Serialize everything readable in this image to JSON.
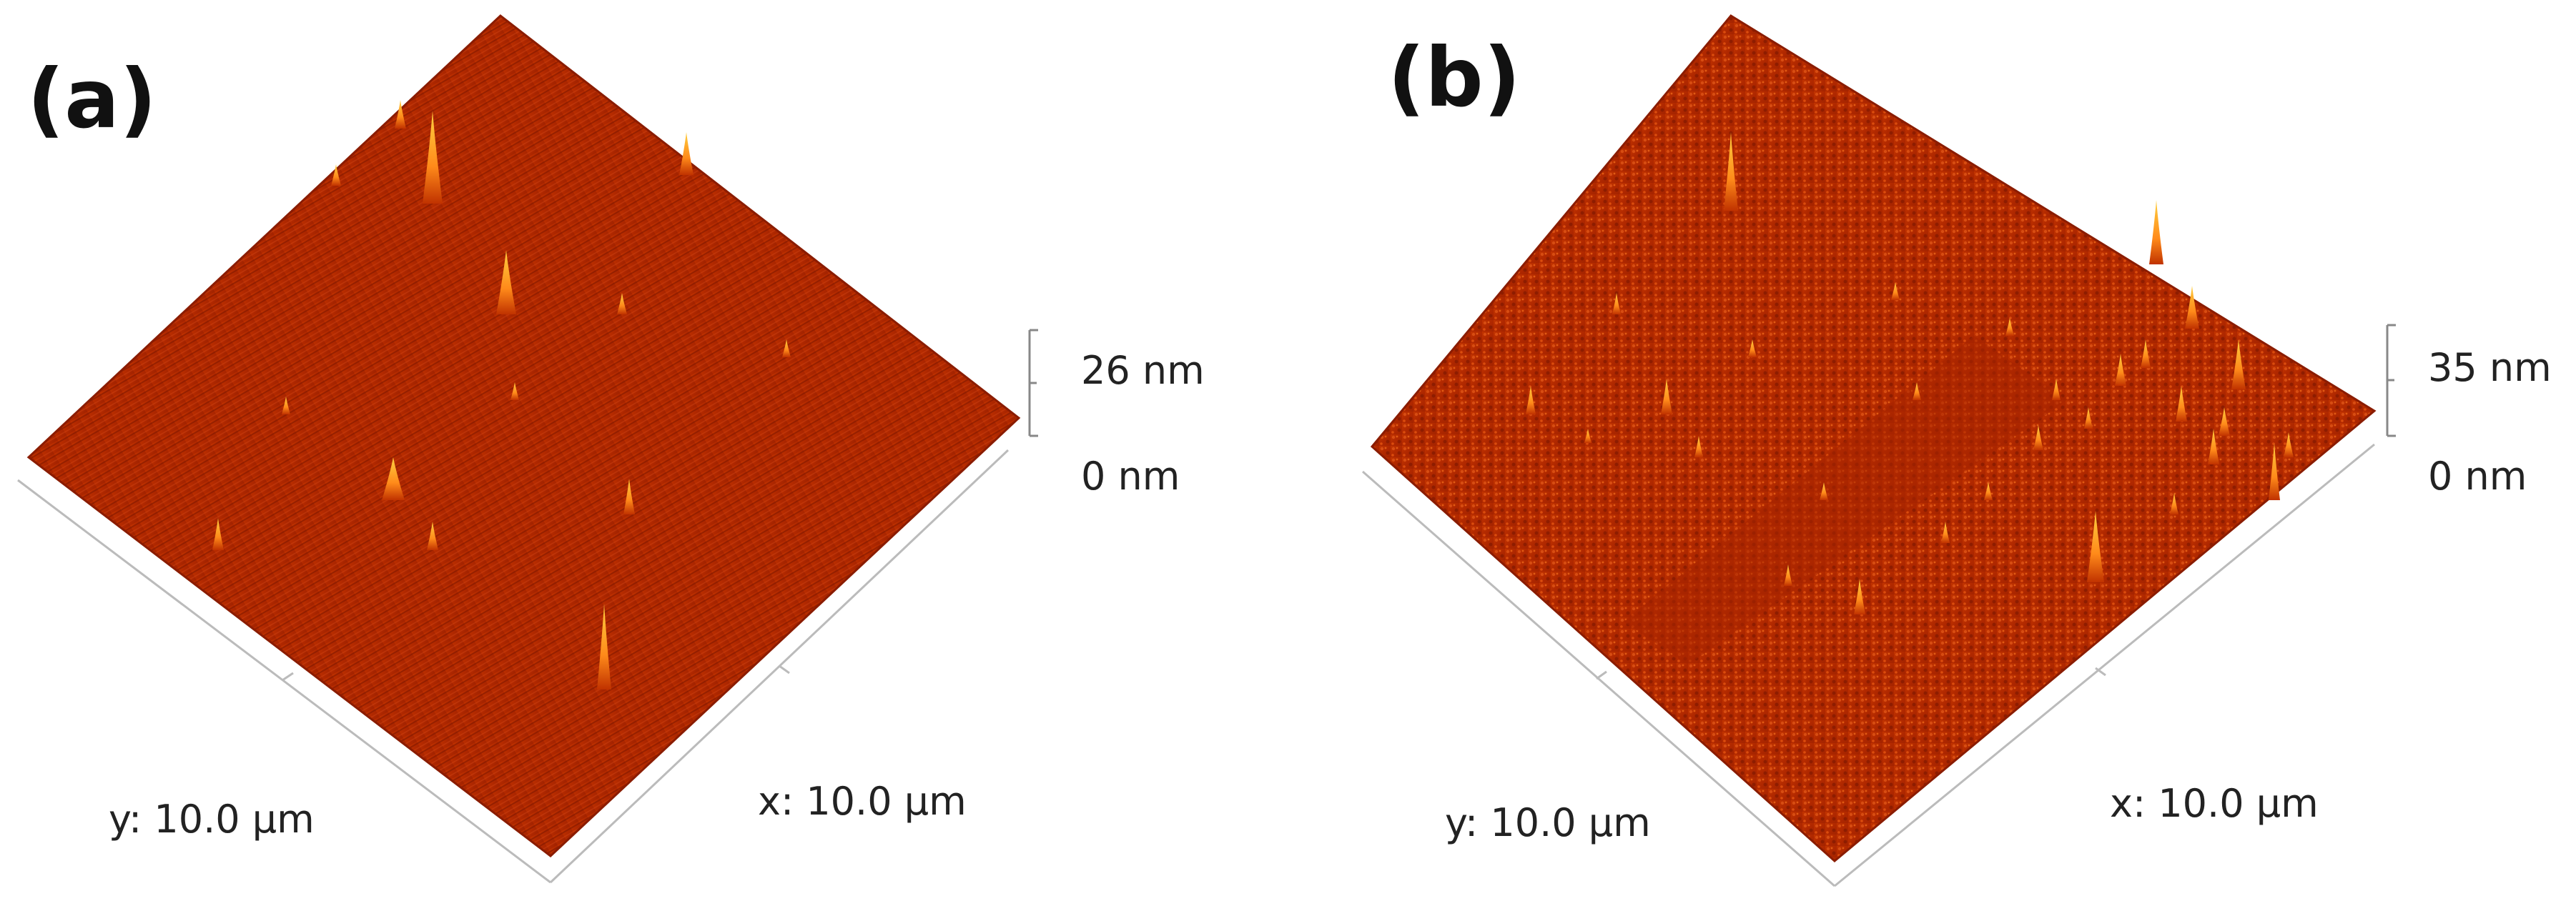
{
  "panels": [
    {
      "letter": "(a)",
      "z_top_label": "26 nm",
      "z_bottom_label": "0 nm",
      "y_axis_label": "y: 10.0 µm",
      "x_axis_label": "x: 10.0 µm",
      "peak_count": 14,
      "texture": "striated",
      "colors": {
        "base": "#b52a00",
        "dark": "#7a1500",
        "peak": "#ffb020",
        "highlight": "#ff8a1a"
      }
    },
    {
      "letter": "(b)",
      "z_top_label": "35 nm",
      "z_bottom_label": "0 nm",
      "y_axis_label": "y: 10.0 µm",
      "x_axis_label": "x: 10.0 µm",
      "peak_count": 30,
      "texture": "granular",
      "colors": {
        "base": "#b52a00",
        "dark": "#7a1500",
        "peak": "#ffb020",
        "highlight": "#ff8a1a"
      }
    }
  ]
}
